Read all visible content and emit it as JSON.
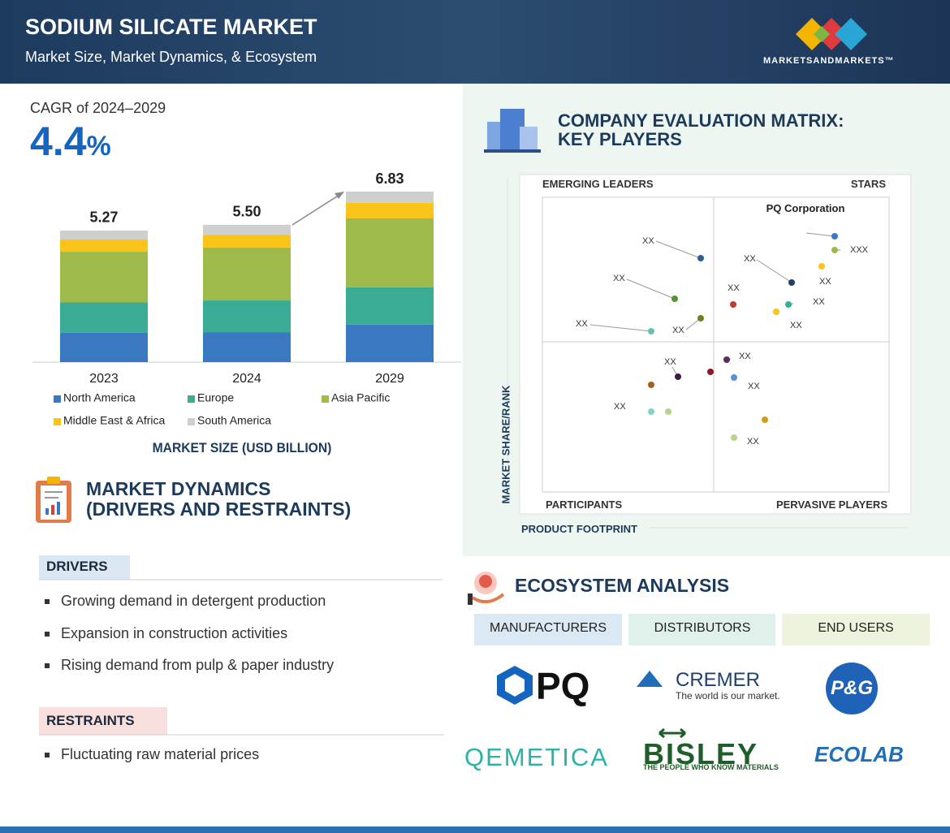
{
  "header": {
    "title": "SODIUM SILICATE MARKET",
    "subtitle": "Market Size, Market Dynamics, & Ecosystem",
    "brand": "MARKETSANDMARKETS™"
  },
  "cagr": {
    "label": "CAGR of 2024–2029",
    "value": 4.4,
    "unit": "%"
  },
  "chart_data": {
    "type": "bar",
    "stacked": true,
    "categories": [
      "2023",
      "2024",
      "2029"
    ],
    "totals": [
      5.27,
      5.5,
      6.83
    ],
    "total_labels": [
      "5.27",
      "5.50",
      "6.83"
    ],
    "series": [
      {
        "name": "North America",
        "color": "#3b78c2",
        "values": [
          1.18,
          1.2,
          1.5
        ]
      },
      {
        "name": "Europe",
        "color": "#3aab95",
        "values": [
          1.21,
          1.27,
          1.5
        ]
      },
      {
        "name": "Asia Pacific",
        "color": "#9dba4a",
        "values": [
          2.03,
          2.12,
          2.76
        ]
      },
      {
        "name": "Middle East & Africa",
        "color": "#fbc419",
        "values": [
          0.49,
          0.52,
          0.62
        ]
      },
      {
        "name": "South America",
        "color": "#cfcfcf",
        "values": [
          0.36,
          0.39,
          0.45
        ]
      }
    ],
    "xlabel": "MARKET SIZE (USD BILLION)"
  },
  "dynamics": {
    "title": "MARKET DYNAMICS",
    "subtitle": "(DRIVERS AND RESTRAINTS)",
    "drivers": {
      "heading": "DRIVERS",
      "items": [
        "Growing demand in detergent production",
        "Expansion in construction activities",
        "Rising demand from pulp & paper industry"
      ]
    },
    "restraints": {
      "heading": "RESTRAINTS",
      "items": [
        "Fluctuating raw material prices"
      ]
    }
  },
  "matrix": {
    "title": "COMPANY EVALUATION MATRIX:",
    "title2": "KEY PLAYERS",
    "emerging": "EMERGING LEADERS",
    "stars": "STARS",
    "participants": "PARTICIPANTS",
    "pervasive": "PERVASIVE PLAYERS",
    "y_label": "MARKET SHARE/RANK",
    "x_label": "PRODUCT FOOTPRINT",
    "point_labels": [
      "PQ Corporation",
      "XXX",
      "XX",
      "XX",
      "XX",
      "XX",
      "XX",
      "XX",
      "XX",
      "XX",
      "XX",
      "XX",
      "XX",
      "XX",
      "XX",
      "XX"
    ]
  },
  "ecosystem": {
    "title": "ECOSYSTEM ANALYSIS",
    "columns": [
      "MANUFACTURERS",
      "DISTRIBUTORS",
      "END USERS"
    ],
    "logos": {
      "pq": "PQ",
      "cremer": "CREMER",
      "cremer_tag": "The world is our market.",
      "pg": "P&G",
      "qemetica": "QEMETICA",
      "bisley": "BISLEY",
      "bisley_tag": "THE PEOPLE WHO KNOW MATERIALS",
      "ecolab": "ECOLAB"
    }
  }
}
